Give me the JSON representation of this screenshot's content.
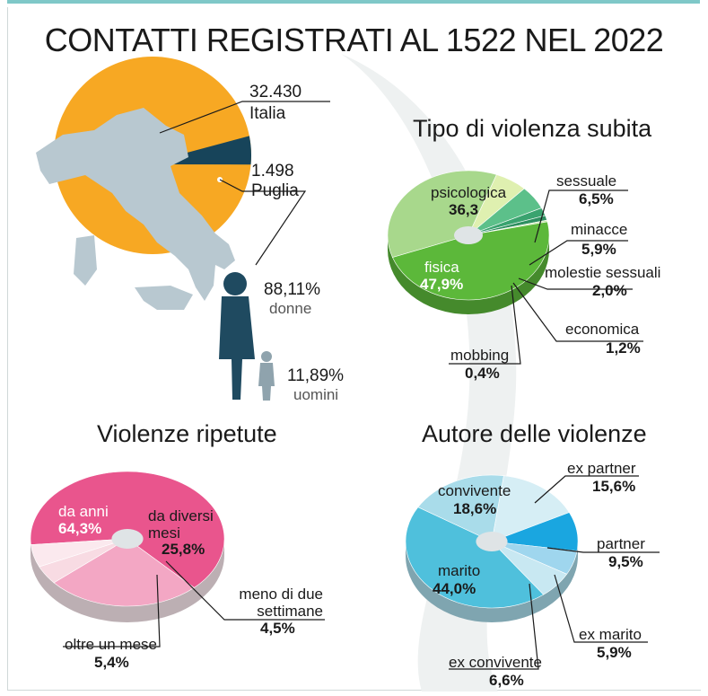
{
  "title": "CONTATTI REGISTRATI AL 1522 NEL 2022",
  "italia": {
    "value": "32.430",
    "label": "Italia"
  },
  "puglia": {
    "value": "1.498",
    "label": "Puglia"
  },
  "gender": {
    "donne": {
      "value": "88,11%",
      "label": "donne"
    },
    "uomini": {
      "value": "11,89%",
      "label": "uomini"
    }
  },
  "sections": {
    "tipo": "Tipo di violenza subita",
    "ripetute": "Violenze ripetute",
    "autore": "Autore delle violenze"
  },
  "colors": {
    "orange": "#f7a823",
    "navy": "#17445a",
    "map": "#b8c8d0",
    "figure": "#1f4a60"
  },
  "chart_data": [
    {
      "type": "pie",
      "name": "Contatti registrati",
      "slices": [
        {
          "label": "Italia",
          "value": 32430,
          "display": "32.430",
          "color": "#f7a823"
        },
        {
          "label": "Puglia",
          "value": 1498,
          "display": "1.498",
          "color": "#17445a"
        }
      ]
    },
    {
      "type": "pie",
      "title": "Tipo di violenza subita",
      "slices": [
        {
          "label": "psicologica",
          "value": 36.3,
          "display": "36,3",
          "color": "#a8d88c"
        },
        {
          "label": "sessuale",
          "value": 6.5,
          "display": "6,5%",
          "color": "#dff0b0"
        },
        {
          "label": "minacce",
          "value": 5.9,
          "display": "5,9%",
          "color": "#5cc08a"
        },
        {
          "label": "molestie sessuali",
          "value": 2.0,
          "display": "2,0%",
          "color": "#3aa36f"
        },
        {
          "label": "economica",
          "value": 1.2,
          "display": "1,2%",
          "color": "#2e8f60"
        },
        {
          "label": "mobbing",
          "value": 0.4,
          "display": "0,4%",
          "color": "#c6e6a8"
        },
        {
          "label": "fisica",
          "value": 47.9,
          "display": "47,9%",
          "color": "#5cb83a"
        }
      ]
    },
    {
      "type": "pie",
      "title": "Violenze ripetute",
      "slices": [
        {
          "label": "da anni",
          "value": 64.3,
          "display": "64,3%",
          "color": "#e9558d"
        },
        {
          "label": "da diversi mesi",
          "value": 25.8,
          "display": "25,8%",
          "color": "#f3a7c4"
        },
        {
          "label": "meno di due settimane",
          "value": 4.5,
          "display": "4,5%",
          "color": "#f8dbe3"
        },
        {
          "label": "oltre un mese",
          "value": 5.4,
          "display": "5,4%",
          "color": "#fbe9ee"
        }
      ]
    },
    {
      "type": "pie",
      "title": "Autore delle violenze",
      "slices": [
        {
          "label": "ex partner",
          "value": 15.6,
          "display": "15,6%",
          "color": "#d6eef5"
        },
        {
          "label": "partner",
          "value": 9.5,
          "display": "9,5%",
          "color": "#1aa6e0"
        },
        {
          "label": "ex marito",
          "value": 5.9,
          "display": "5,9%",
          "color": "#9fd6ee"
        },
        {
          "label": "ex convivente",
          "value": 6.6,
          "display": "6,6%",
          "color": "#c8e8f2"
        },
        {
          "label": "marito",
          "value": 44.0,
          "display": "44,0%",
          "color": "#4fc0dc"
        },
        {
          "label": "convivente",
          "value": 18.6,
          "display": "18,6%",
          "color": "#a9dcea"
        }
      ]
    }
  ]
}
